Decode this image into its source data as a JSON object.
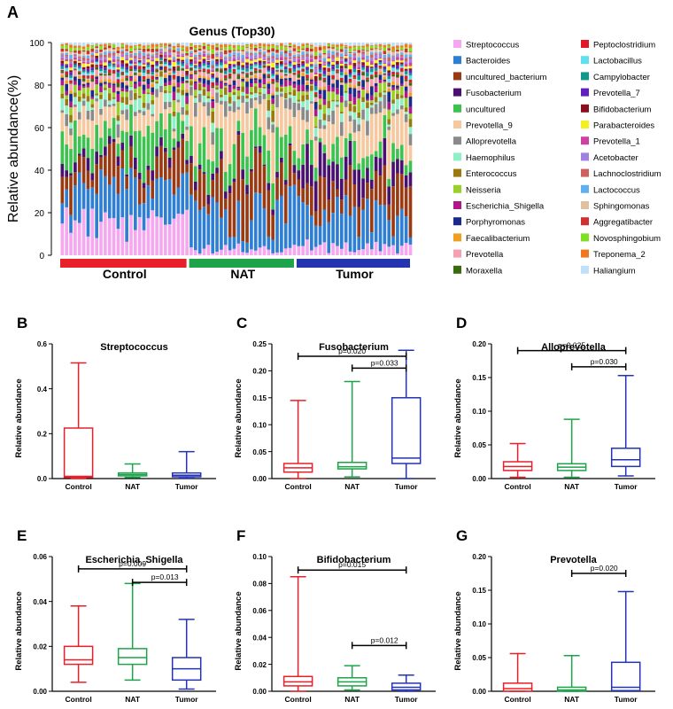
{
  "colors": {
    "control": "#e8202a",
    "nat": "#1ea34a",
    "tumor": "#2433b0",
    "axis": "#000000"
  },
  "genus_palette": [
    {
      "name": "Streptococcus",
      "color": "#f5a8f0"
    },
    {
      "name": "Bacteroides",
      "color": "#2e7fd4"
    },
    {
      "name": "uncultured_bacterium",
      "color": "#9a3a12"
    },
    {
      "name": "Fusobacterium",
      "color": "#4a1070"
    },
    {
      "name": "uncultured",
      "color": "#3cc24e"
    },
    {
      "name": "Prevotella_9",
      "color": "#f6c8a0"
    },
    {
      "name": "Alloprevotella",
      "color": "#8a8a8a"
    },
    {
      "name": "Haemophilus",
      "color": "#8ff0c8"
    },
    {
      "name": "Enterococcus",
      "color": "#9a7a10"
    },
    {
      "name": "Neisseria",
      "color": "#9ad02a"
    },
    {
      "name": "Escherichia_Shigella",
      "color": "#b0188a"
    },
    {
      "name": "Porphyromonas",
      "color": "#1a2a8a"
    },
    {
      "name": "Faecalibacterium",
      "color": "#f0a020"
    },
    {
      "name": "Prevotella",
      "color": "#f4a0b0"
    },
    {
      "name": "Moraxella",
      "color": "#3a6a10"
    },
    {
      "name": "Peptoclostridium",
      "color": "#e01828"
    },
    {
      "name": "Lactobacillus",
      "color": "#60e0ec"
    },
    {
      "name": "Campylobacter",
      "color": "#10988a"
    },
    {
      "name": "Prevotella_7",
      "color": "#6020c0"
    },
    {
      "name": "Bifidobacterium",
      "color": "#8a1020"
    },
    {
      "name": "Parabacteroides",
      "color": "#f4f020"
    },
    {
      "name": "Prevotella_1",
      "color": "#d040a0"
    },
    {
      "name": "Acetobacter",
      "color": "#a080e0"
    },
    {
      "name": "Lachnoclostridium",
      "color": "#d06060"
    },
    {
      "name": "Lactococcus",
      "color": "#60b0f0"
    },
    {
      "name": "Sphingomonas",
      "color": "#e0c0a0"
    },
    {
      "name": "Aggregatibacter",
      "color": "#d03030"
    },
    {
      "name": "Novosphingobium",
      "color": "#80e020"
    },
    {
      "name": "Treponema_2",
      "color": "#f07820"
    },
    {
      "name": "Haliangium",
      "color": "#c0e0f8"
    }
  ],
  "chart_data": [
    {
      "panel": "A",
      "type": "bar",
      "stacked": true,
      "title": "Genus (Top30)",
      "xlabel": "",
      "ylabel": "Relative abundance(%)",
      "ylim": [
        0,
        100
      ],
      "yticks": [
        0,
        20,
        40,
        60,
        80,
        100
      ],
      "groups": [
        {
          "label": "Control",
          "samples": 30
        },
        {
          "label": "NAT",
          "samples": 25
        },
        {
          "label": "Tumor",
          "samples": 27
        }
      ],
      "legend_position": "right"
    },
    {
      "panel": "B",
      "type": "box",
      "title": "Streptococcus",
      "ylabel": "Relative abundance",
      "ylim": [
        0,
        0.6
      ],
      "yticks": [
        0.0,
        0.2,
        0.4,
        0.6
      ],
      "tick_labels": [
        "0.0",
        "0.2",
        "0.4",
        "0.6"
      ],
      "categories": [
        "Control",
        "NAT",
        "Tumor"
      ],
      "boxes": [
        {
          "min": 0.0,
          "q1": 0.005,
          "median": 0.01,
          "q3": 0.225,
          "max": 0.515
        },
        {
          "min": 0.005,
          "q1": 0.012,
          "median": 0.018,
          "q3": 0.025,
          "max": 0.065
        },
        {
          "min": 0.002,
          "q1": 0.008,
          "median": 0.015,
          "q3": 0.025,
          "max": 0.12
        }
      ],
      "annotations": []
    },
    {
      "panel": "C",
      "type": "box",
      "title": "Fusobacterium",
      "ylabel": "Relative abundance",
      "ylim": [
        0,
        0.25
      ],
      "yticks": [
        0,
        0.05,
        0.1,
        0.15,
        0.2,
        0.25
      ],
      "tick_labels": [
        "0.00",
        "0.05",
        "0.10",
        "0.15",
        "0.20",
        "0.25"
      ],
      "categories": [
        "Control",
        "NAT",
        "Tumor"
      ],
      "boxes": [
        {
          "min": 0.0,
          "q1": 0.012,
          "median": 0.02,
          "q3": 0.028,
          "max": 0.145
        },
        {
          "min": 0.003,
          "q1": 0.018,
          "median": 0.022,
          "q3": 0.03,
          "max": 0.18
        },
        {
          "min": 0.0,
          "q1": 0.028,
          "median": 0.038,
          "q3": 0.15,
          "max": 0.238
        }
      ],
      "annotations": [
        {
          "from": 0,
          "to": 2,
          "y": 0.227,
          "label": "p=0.020"
        },
        {
          "from": 1,
          "to": 2,
          "y": 0.205,
          "label": "p=0.033"
        }
      ]
    },
    {
      "panel": "D",
      "type": "box",
      "title": "Alloprevotella",
      "ylabel": "Relative abundance",
      "ylim": [
        0,
        0.2
      ],
      "yticks": [
        0,
        0.05,
        0.1,
        0.15,
        0.2
      ],
      "tick_labels": [
        "0.00",
        "0.05",
        "0.10",
        "0.15",
        "0.20"
      ],
      "categories": [
        "Control",
        "NAT",
        "Tumor"
      ],
      "boxes": [
        {
          "min": 0.002,
          "q1": 0.012,
          "median": 0.018,
          "q3": 0.025,
          "max": 0.052
        },
        {
          "min": 0.002,
          "q1": 0.012,
          "median": 0.017,
          "q3": 0.022,
          "max": 0.088
        },
        {
          "min": 0.004,
          "q1": 0.018,
          "median": 0.028,
          "q3": 0.045,
          "max": 0.153
        }
      ],
      "annotations": [
        {
          "from": 0,
          "to": 2,
          "y": 0.19,
          "label": "p=0.025"
        },
        {
          "from": 1,
          "to": 2,
          "y": 0.166,
          "label": "p=0.030"
        }
      ]
    },
    {
      "panel": "E",
      "type": "box",
      "title": "Escherichia_Shigella",
      "ylabel": "Relative abundance",
      "ylim": [
        0,
        0.06
      ],
      "yticks": [
        0,
        0.02,
        0.04,
        0.06
      ],
      "tick_labels": [
        "0.00",
        "0.02",
        "0.04",
        "0.06"
      ],
      "categories": [
        "Control",
        "NAT",
        "Tumor"
      ],
      "boxes": [
        {
          "min": 0.004,
          "q1": 0.012,
          "median": 0.014,
          "q3": 0.02,
          "max": 0.038
        },
        {
          "min": 0.005,
          "q1": 0.012,
          "median": 0.015,
          "q3": 0.019,
          "max": 0.048
        },
        {
          "min": 0.001,
          "q1": 0.005,
          "median": 0.01,
          "q3": 0.015,
          "max": 0.032
        }
      ],
      "annotations": [
        {
          "from": 0,
          "to": 2,
          "y": 0.0545,
          "label": "p=0.009"
        },
        {
          "from": 1,
          "to": 2,
          "y": 0.0485,
          "label": "p=0.013"
        }
      ]
    },
    {
      "panel": "F",
      "type": "box",
      "title": "Bifidobacterium",
      "ylabel": "Relative abundance",
      "ylim": [
        0,
        0.1
      ],
      "yticks": [
        0,
        0.02,
        0.04,
        0.06,
        0.08,
        0.1
      ],
      "tick_labels": [
        "0.00",
        "0.02",
        "0.04",
        "0.06",
        "0.08",
        "0.10"
      ],
      "categories": [
        "Control",
        "NAT",
        "Tumor"
      ],
      "boxes": [
        {
          "min": 0.0,
          "q1": 0.004,
          "median": 0.007,
          "q3": 0.011,
          "max": 0.085
        },
        {
          "min": 0.001,
          "q1": 0.004,
          "median": 0.007,
          "q3": 0.01,
          "max": 0.019
        },
        {
          "min": 0.0,
          "q1": 0.001,
          "median": 0.003,
          "q3": 0.006,
          "max": 0.012
        }
      ],
      "annotations": [
        {
          "from": 0,
          "to": 2,
          "y": 0.09,
          "label": "p=0.015"
        },
        {
          "from": 1,
          "to": 2,
          "y": 0.034,
          "label": "p=0.012"
        }
      ]
    },
    {
      "panel": "G",
      "type": "box",
      "title": "Prevotella",
      "ylabel": "Relative abundance",
      "ylim": [
        0,
        0.2
      ],
      "yticks": [
        0,
        0.05,
        0.1,
        0.15,
        0.2
      ],
      "tick_labels": [
        "0.00",
        "0.05",
        "0.10",
        "0.15",
        "0.20"
      ],
      "categories": [
        "Control",
        "NAT",
        "Tumor"
      ],
      "boxes": [
        {
          "min": 0.0,
          "q1": 0.0,
          "median": 0.004,
          "q3": 0.012,
          "max": 0.056
        },
        {
          "min": 0.0,
          "q1": 0.0,
          "median": 0.002,
          "q3": 0.006,
          "max": 0.053
        },
        {
          "min": 0.0,
          "q1": 0.001,
          "median": 0.006,
          "q3": 0.043,
          "max": 0.148
        }
      ],
      "annotations": [
        {
          "from": 1,
          "to": 2,
          "y": 0.175,
          "label": "p=0.020"
        }
      ]
    }
  ]
}
